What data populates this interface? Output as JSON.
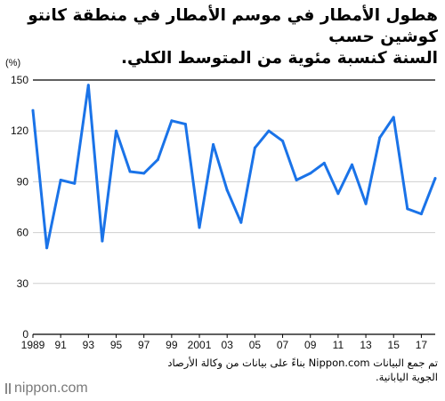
{
  "title_lines": [
    "هطول الأمطار في موسم الأمطار في منطقة كانتو كوشين حسب",
    "السنة كنسبة مئوية من المتوسط الكلي."
  ],
  "source_lines": [
    "تم جمع البيانات Nippon.com بناءً على بيانات من وكالة الأرصاد",
    "الجوية اليابانية."
  ],
  "logo_text": "nippon.com",
  "chart_data": {
    "type": "line",
    "unit": "(%)",
    "ylim": [
      0,
      150
    ],
    "yticks": [
      0,
      30,
      60,
      90,
      120,
      150
    ],
    "xlim": [
      1989,
      2018
    ],
    "xticks": [
      {
        "x": 1989,
        "label": "1989"
      },
      {
        "x": 1991,
        "label": "91"
      },
      {
        "x": 1993,
        "label": "93"
      },
      {
        "x": 1995,
        "label": "95"
      },
      {
        "x": 1997,
        "label": "97"
      },
      {
        "x": 1999,
        "label": "99"
      },
      {
        "x": 2001,
        "label": "2001"
      },
      {
        "x": 2003,
        "label": "03"
      },
      {
        "x": 2005,
        "label": "05"
      },
      {
        "x": 2007,
        "label": "07"
      },
      {
        "x": 2009,
        "label": "09"
      },
      {
        "x": 2011,
        "label": "11"
      },
      {
        "x": 2013,
        "label": "13"
      },
      {
        "x": 2015,
        "label": "15"
      },
      {
        "x": 2017,
        "label": "17"
      }
    ],
    "grid": true,
    "reference_line": 150,
    "line_color": "#1a73e8",
    "x": [
      1989,
      1990,
      1991,
      1992,
      1993,
      1994,
      1995,
      1996,
      1997,
      1998,
      1999,
      2000,
      2001,
      2002,
      2003,
      2004,
      2005,
      2006,
      2007,
      2008,
      2009,
      2010,
      2011,
      2012,
      2013,
      2014,
      2015,
      2016,
      2017,
      2018
    ],
    "values": [
      132,
      51,
      91,
      89,
      147,
      55,
      120,
      96,
      95,
      103,
      126,
      124,
      63,
      112,
      85,
      66,
      110,
      120,
      114,
      91,
      95,
      101,
      83,
      100,
      77,
      116,
      128,
      74,
      71,
      92
    ]
  }
}
